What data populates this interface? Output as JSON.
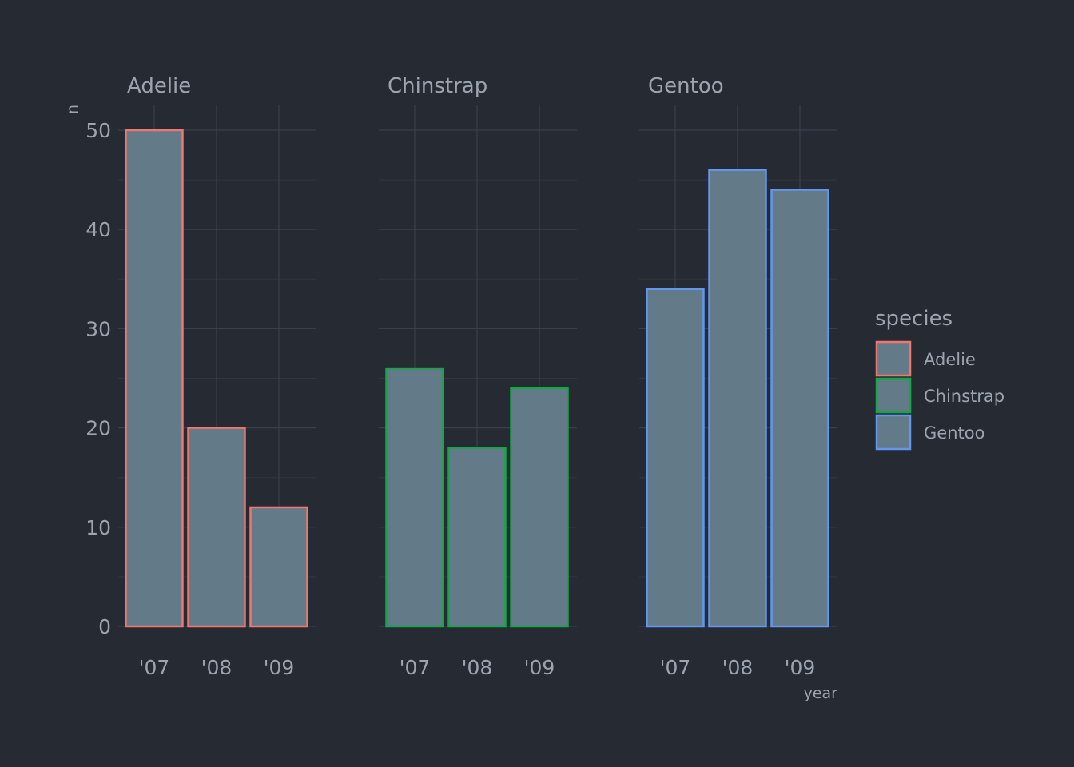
{
  "chart_data": {
    "type": "bar",
    "facets": [
      "Adelie",
      "Chinstrap",
      "Gentoo"
    ],
    "categories": [
      "'07",
      "'08",
      "'09"
    ],
    "series": [
      {
        "name": "Adelie",
        "values": [
          50,
          20,
          12
        ]
      },
      {
        "name": "Chinstrap",
        "values": [
          26,
          18,
          24
        ]
      },
      {
        "name": "Gentoo",
        "values": [
          34,
          46,
          44
        ]
      }
    ],
    "xlabel": "year",
    "ylabel": "n",
    "ylim": [
      0,
      50
    ],
    "yticks": [
      0,
      10,
      20,
      30,
      40,
      50
    ],
    "legend": {
      "title": "species",
      "position": "right",
      "items": [
        "Adelie",
        "Chinstrap",
        "Gentoo"
      ]
    },
    "colors": {
      "Adelie": "#f0766e",
      "Chinstrap": "#12a844",
      "Gentoo": "#6396f2",
      "bar_fill": "#637a88",
      "background": "#252a33"
    },
    "grid": true
  }
}
